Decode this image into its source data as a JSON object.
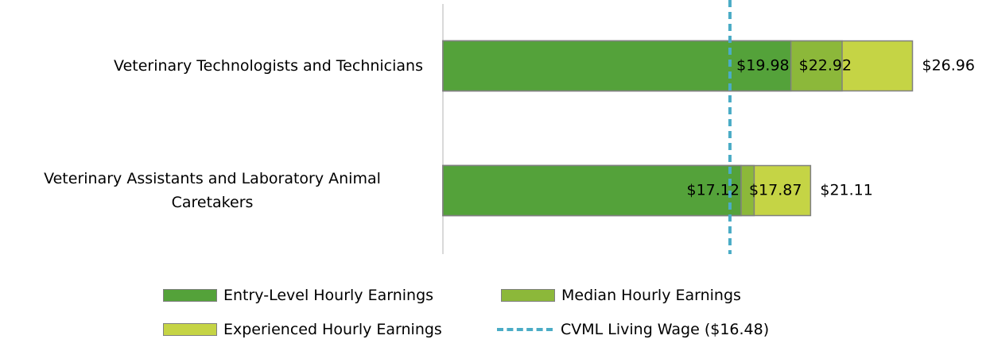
{
  "chart_data": {
    "type": "overlapping-bar",
    "categories": [
      "Veterinary Technologists and Technicians",
      "Veterinary Assistants and Laboratory Animal Caretakers"
    ],
    "series": [
      {
        "name": "Entry-Level Hourly Earnings",
        "color": "#54a23a",
        "values": [
          19.98,
          17.12
        ],
        "value_labels": [
          "$19.98",
          "$17.12"
        ]
      },
      {
        "name": "Median Hourly Earnings",
        "color": "#8cb83a",
        "values": [
          22.92,
          17.87
        ],
        "value_labels": [
          "$22.92",
          "$17.87"
        ]
      },
      {
        "name": "Experienced Hourly Earnings",
        "color": "#c5d445",
        "values": [
          26.96,
          21.11
        ],
        "value_labels": [
          "$26.96",
          "$21.11"
        ]
      }
    ],
    "reference_line": {
      "name": "CVML Living Wage ($16.48)",
      "value": 16.48,
      "color": "#4bacc6"
    },
    "xlim": [
      0,
      31
    ]
  }
}
